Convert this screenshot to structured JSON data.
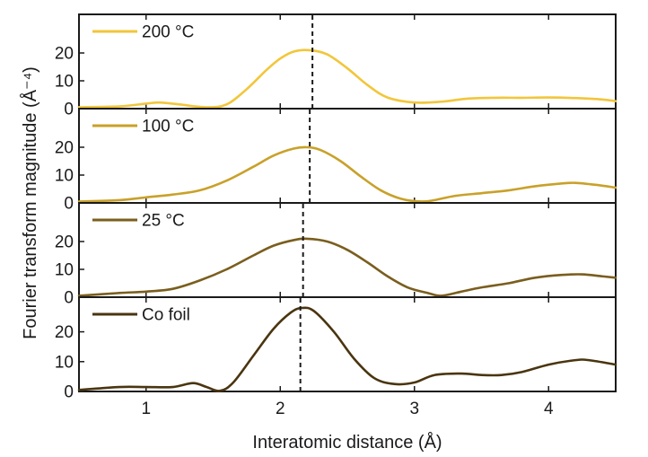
{
  "chart_data": {
    "type": "line",
    "layout": "stacked-panels",
    "xlabel": "Interatomic distance (Å)",
    "ylabel": "Fourier transform magnitude (Å⁻⁴)",
    "xlim": [
      0.5,
      4.5
    ],
    "xticks": [
      1,
      2,
      3,
      4
    ],
    "x_tick_labels": [
      "1",
      "2",
      "3",
      "4"
    ],
    "yticks": [
      0,
      10,
      20
    ],
    "y_tick_labels": [
      "0",
      "10",
      "20"
    ],
    "grid": false,
    "legend_position": "top-left of each panel",
    "panels": [
      {
        "name": "200 °C",
        "color": "#F2C63A",
        "ylim": [
          0,
          30
        ],
        "peak_line_x": 2.24,
        "x": [
          0.5,
          0.8,
          1.0,
          1.1,
          1.25,
          1.45,
          1.6,
          1.75,
          1.9,
          2.0,
          2.1,
          2.22,
          2.35,
          2.5,
          2.65,
          2.8,
          3.0,
          3.2,
          3.4,
          3.6,
          3.8,
          4.0,
          4.2,
          4.4,
          4.5
        ],
        "y": [
          0.5,
          0.8,
          1.8,
          2.2,
          1.5,
          0.5,
          1.5,
          7.0,
          14.0,
          18.0,
          20.5,
          21.0,
          19.5,
          14.5,
          8.5,
          4.0,
          2.2,
          2.5,
          3.6,
          3.9,
          3.9,
          4.0,
          3.8,
          3.3,
          2.7
        ]
      },
      {
        "name": "100 °C",
        "color": "#C9A12A",
        "ylim": [
          0,
          30
        ],
        "peak_line_x": 2.22,
        "x": [
          0.5,
          0.8,
          1.0,
          1.2,
          1.4,
          1.6,
          1.8,
          1.95,
          2.1,
          2.2,
          2.3,
          2.45,
          2.6,
          2.75,
          2.9,
          3.05,
          3.15,
          3.3,
          3.5,
          3.7,
          3.9,
          4.1,
          4.2,
          4.35,
          4.5
        ],
        "y": [
          0.5,
          1.0,
          2.0,
          3.0,
          4.5,
          8.0,
          13.0,
          17.0,
          19.5,
          20.0,
          19.0,
          15.0,
          9.5,
          4.5,
          1.5,
          0.5,
          1.0,
          2.5,
          3.5,
          4.5,
          6.0,
          7.0,
          7.2,
          6.5,
          5.5
        ]
      },
      {
        "name": "25 °C",
        "color": "#7A5E1E",
        "ylim": [
          0,
          30
        ],
        "peak_line_x": 2.17,
        "x": [
          0.5,
          0.8,
          1.0,
          1.2,
          1.4,
          1.6,
          1.8,
          1.95,
          2.1,
          2.2,
          2.35,
          2.5,
          2.65,
          2.8,
          2.95,
          3.1,
          3.2,
          3.35,
          3.5,
          3.7,
          3.9,
          4.1,
          4.25,
          4.4,
          4.5
        ],
        "y": [
          0.5,
          1.5,
          2.0,
          3.0,
          6.0,
          10.0,
          15.0,
          18.5,
          20.5,
          21.0,
          20.0,
          17.0,
          12.5,
          7.5,
          3.5,
          1.5,
          0.5,
          2.0,
          3.5,
          5.0,
          7.0,
          8.0,
          8.2,
          7.5,
          7.0
        ]
      },
      {
        "name": "Co foil",
        "color": "#4A3510",
        "ylim": [
          0,
          28
        ],
        "peak_line_x": 2.15,
        "x": [
          0.5,
          0.8,
          1.0,
          1.2,
          1.35,
          1.45,
          1.55,
          1.65,
          1.8,
          1.95,
          2.08,
          2.16,
          2.25,
          2.4,
          2.55,
          2.7,
          2.85,
          3.0,
          3.15,
          3.35,
          3.5,
          3.65,
          3.8,
          4.0,
          4.2,
          4.3,
          4.5
        ],
        "y": [
          0.5,
          1.5,
          1.5,
          1.5,
          2.8,
          1.5,
          0.2,
          3.0,
          12.0,
          21.0,
          26.5,
          28.0,
          27.0,
          20.0,
          11.0,
          4.5,
          2.5,
          3.0,
          5.5,
          6.0,
          5.5,
          5.5,
          6.5,
          9.0,
          10.5,
          10.5,
          9.0
        ]
      }
    ]
  }
}
